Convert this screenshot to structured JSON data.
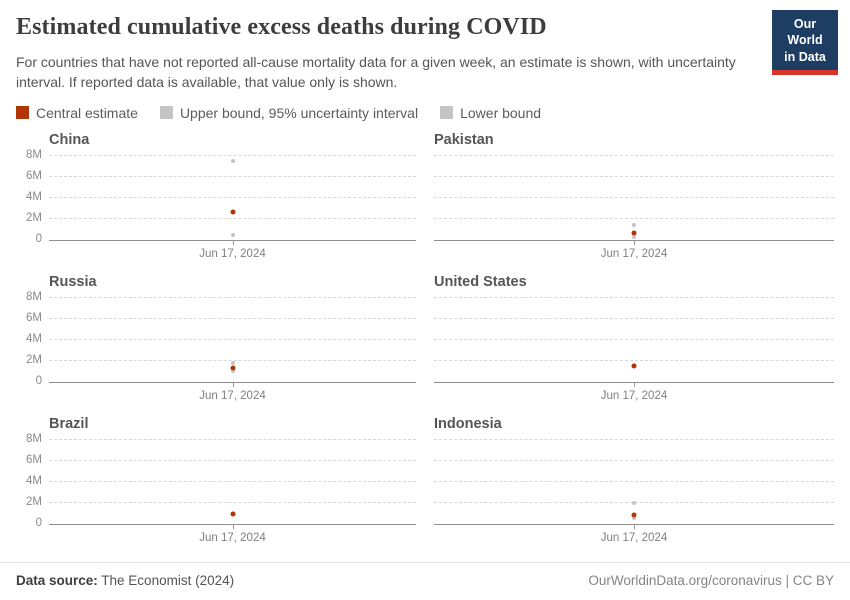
{
  "header": {
    "title": "Estimated cumulative excess deaths during COVID",
    "subtitle": "For countries that have not reported all-cause mortality data for a given week, an estimate is shown, with uncertainty interval. If reported data is available, that value only is shown.",
    "logo": {
      "line1": "Our World",
      "line2": "in Data"
    }
  },
  "colors": {
    "central_estimate": "#b13507",
    "uncertainty_bound": "#c4c4c4",
    "logo_navy": "#1d3d63",
    "logo_red": "#d8352a"
  },
  "legend": {
    "items": [
      {
        "label": "Central estimate",
        "color": "#b13507"
      },
      {
        "label": "Upper bound, 95% uncertainty interval",
        "color": "#c4c4c4"
      },
      {
        "label": "Lower bound",
        "color": "#c4c4c4"
      }
    ]
  },
  "chart_data": {
    "type": "scatter",
    "title": "Estimated cumulative excess deaths during COVID",
    "x_tick": "Jun 17, 2024",
    "ylim": [
      0,
      8000000
    ],
    "gridlines_m": [
      0,
      2,
      4,
      6,
      8
    ],
    "y_tick_labels": [
      "0",
      "2M",
      "4M",
      "6M",
      "8M"
    ],
    "grid": "dashed-horizontal",
    "colors": {
      "central": "#b13507",
      "bounds": "#c4c4c4"
    },
    "panels": [
      {
        "country": "China",
        "central": 2600000,
        "upper": 7500000,
        "lower": 500000
      },
      {
        "country": "Pakistan",
        "central": 650000,
        "upper": 1400000,
        "lower": 250000
      },
      {
        "country": "Russia",
        "central": 1350000,
        "upper": 1750000,
        "lower": 1000000
      },
      {
        "country": "United States",
        "central": 1500000,
        "upper": null,
        "lower": null
      },
      {
        "country": "Brazil",
        "central": 900000,
        "upper": null,
        "lower": null
      },
      {
        "country": "Indonesia",
        "central": 850000,
        "upper": 2000000,
        "lower": 550000
      }
    ]
  },
  "footer": {
    "source_label": "Data source:",
    "source_value": " The Economist (2024)",
    "credit": "OurWorldinData.org/coronavirus | CC BY"
  }
}
